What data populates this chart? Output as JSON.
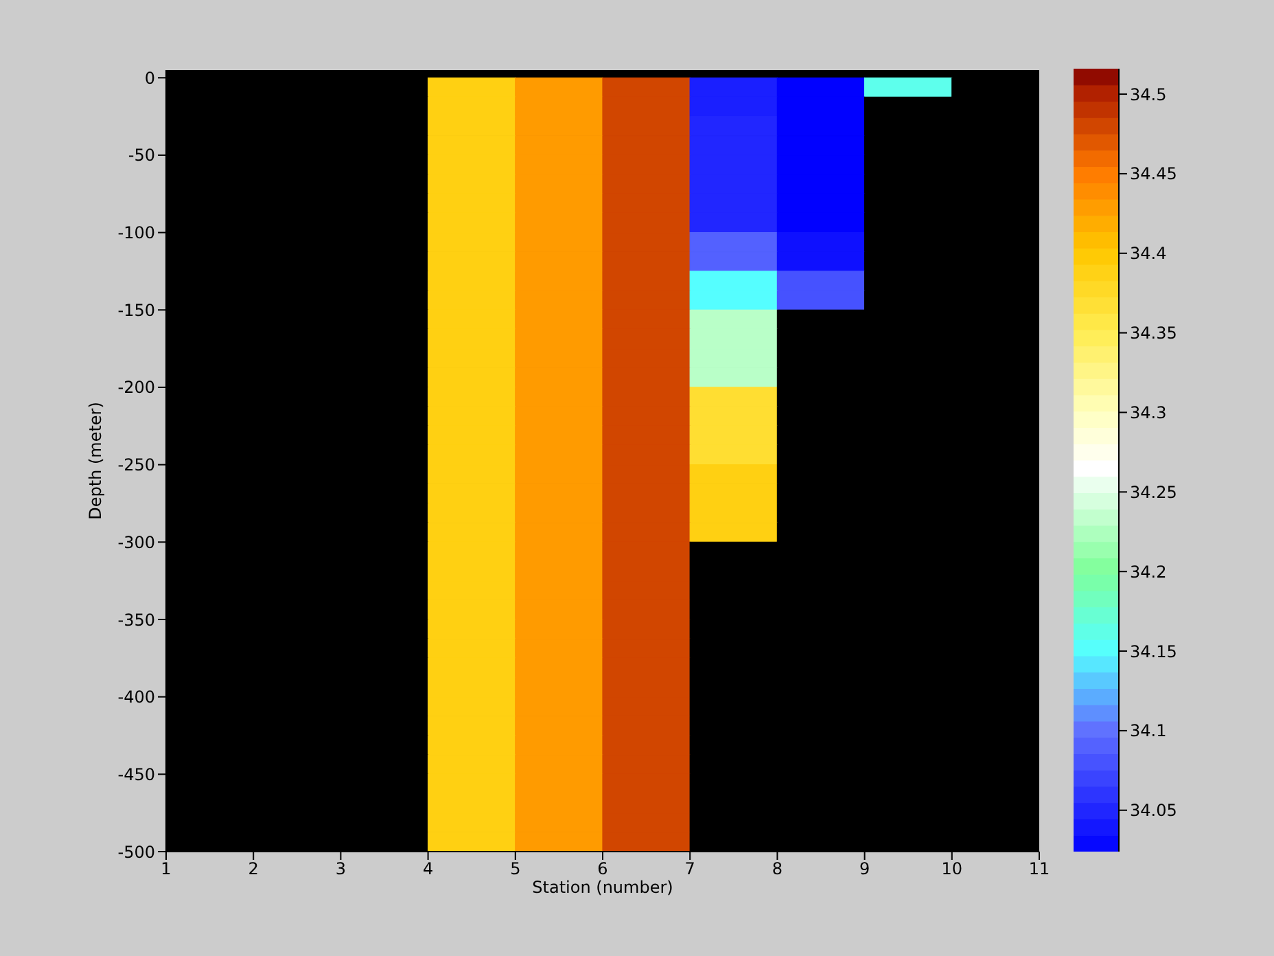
{
  "chart_data": {
    "type": "heatmap",
    "xlabel": "Station (number)",
    "ylabel": "Depth (meter)",
    "x": [
      1.5,
      2.5,
      3.5,
      4.5,
      5.5,
      6.5,
      7.5,
      8.5,
      9.5,
      10.5
    ],
    "y": [
      -6.25,
      -18.75,
      -31.25,
      -43.75,
      -56.25,
      -68.75,
      -81.25,
      -93.75,
      -106.25,
      -118.75,
      -131.25,
      -143.75,
      -156.25,
      -168.75,
      -181.25,
      -193.75,
      -206.25,
      -218.75,
      -231.25,
      -243.75,
      -256.25,
      -268.75,
      -281.25,
      -293.75,
      -306.25,
      -318.75,
      -331.25,
      -343.75,
      -356.25,
      -368.75,
      -381.25,
      -393.75,
      -406.25,
      -418.75,
      -431.25,
      -443.75,
      -456.25,
      -468.75,
      -481.25,
      -493.75
    ],
    "cells": [
      [
        null,
        null,
        null,
        34.39,
        34.43,
        34.48,
        34.045,
        34.025,
        34.16,
        null
      ],
      [
        null,
        null,
        null,
        34.39,
        34.43,
        34.48,
        34.045,
        34.025,
        null,
        null
      ],
      [
        null,
        null,
        null,
        34.39,
        34.43,
        34.48,
        34.05,
        34.025,
        null,
        null
      ],
      [
        null,
        null,
        null,
        34.39,
        34.43,
        34.48,
        34.05,
        34.025,
        null,
        null
      ],
      [
        null,
        null,
        null,
        34.39,
        34.43,
        34.48,
        34.05,
        34.025,
        null,
        null
      ],
      [
        null,
        null,
        null,
        34.39,
        34.43,
        34.48,
        34.05,
        34.025,
        null,
        null
      ],
      [
        null,
        null,
        null,
        34.39,
        34.43,
        34.48,
        34.05,
        34.025,
        null,
        null
      ],
      [
        null,
        null,
        null,
        34.39,
        34.43,
        34.48,
        34.05,
        34.025,
        null,
        null
      ],
      [
        null,
        null,
        null,
        34.39,
        34.43,
        34.48,
        34.09,
        34.035,
        null,
        null
      ],
      [
        null,
        null,
        null,
        34.39,
        34.43,
        34.48,
        34.09,
        34.035,
        null,
        null
      ],
      [
        null,
        null,
        null,
        34.39,
        34.43,
        34.48,
        34.15,
        34.08,
        null,
        null
      ],
      [
        null,
        null,
        null,
        34.39,
        34.43,
        34.48,
        34.15,
        34.08,
        null,
        null
      ],
      [
        null,
        null,
        null,
        34.39,
        34.43,
        34.48,
        34.23,
        null,
        null,
        null
      ],
      [
        null,
        null,
        null,
        34.39,
        34.43,
        34.48,
        34.23,
        null,
        null,
        null
      ],
      [
        null,
        null,
        null,
        34.39,
        34.43,
        34.48,
        34.23,
        null,
        null,
        null
      ],
      [
        null,
        null,
        null,
        34.39,
        34.43,
        34.48,
        34.23,
        null,
        null,
        null
      ],
      [
        null,
        null,
        null,
        34.39,
        34.43,
        34.48,
        34.37,
        null,
        null,
        null
      ],
      [
        null,
        null,
        null,
        34.39,
        34.43,
        34.48,
        34.37,
        null,
        null,
        null
      ],
      [
        null,
        null,
        null,
        34.39,
        34.43,
        34.48,
        34.37,
        null,
        null,
        null
      ],
      [
        null,
        null,
        null,
        34.39,
        34.43,
        34.48,
        34.37,
        null,
        null,
        null
      ],
      [
        null,
        null,
        null,
        34.39,
        34.43,
        34.48,
        34.39,
        null,
        null,
        null
      ],
      [
        null,
        null,
        null,
        34.39,
        34.43,
        34.48,
        34.39,
        null,
        null,
        null
      ],
      [
        null,
        null,
        null,
        34.39,
        34.43,
        34.48,
        34.39,
        null,
        null,
        null
      ],
      [
        null,
        null,
        null,
        34.39,
        34.43,
        34.48,
        34.39,
        null,
        null,
        null
      ],
      [
        null,
        null,
        null,
        34.39,
        34.43,
        34.48,
        null,
        null,
        null,
        null
      ],
      [
        null,
        null,
        null,
        34.39,
        34.43,
        34.48,
        null,
        null,
        null,
        null
      ],
      [
        null,
        null,
        null,
        34.39,
        34.43,
        34.48,
        null,
        null,
        null,
        null
      ],
      [
        null,
        null,
        null,
        34.39,
        34.43,
        34.48,
        null,
        null,
        null,
        null
      ],
      [
        null,
        null,
        null,
        34.39,
        34.43,
        34.48,
        null,
        null,
        null,
        null
      ],
      [
        null,
        null,
        null,
        34.39,
        34.43,
        34.48,
        null,
        null,
        null,
        null
      ],
      [
        null,
        null,
        null,
        34.39,
        34.43,
        34.48,
        null,
        null,
        null,
        null
      ],
      [
        null,
        null,
        null,
        34.39,
        34.43,
        34.48,
        null,
        null,
        null,
        null
      ],
      [
        null,
        null,
        null,
        34.39,
        34.43,
        34.48,
        null,
        null,
        null,
        null
      ],
      [
        null,
        null,
        null,
        34.39,
        34.43,
        34.48,
        null,
        null,
        null,
        null
      ],
      [
        null,
        null,
        null,
        34.39,
        34.43,
        34.48,
        null,
        null,
        null,
        null
      ],
      [
        null,
        null,
        null,
        34.39,
        34.43,
        34.48,
        null,
        null,
        null,
        null
      ],
      [
        null,
        null,
        null,
        34.39,
        34.43,
        34.48,
        null,
        null,
        null,
        null
      ],
      [
        null,
        null,
        null,
        34.39,
        34.43,
        34.48,
        null,
        null,
        null,
        null
      ],
      [
        null,
        null,
        null,
        34.39,
        34.43,
        34.48,
        null,
        null,
        null,
        null
      ],
      [
        null,
        null,
        null,
        34.39,
        34.43,
        34.48,
        null,
        null,
        null,
        null
      ]
    ],
    "xlim": [
      1,
      11
    ],
    "xticks": [
      1,
      2,
      3,
      4,
      5,
      6,
      7,
      8,
      9,
      10,
      11
    ],
    "ylim": [
      -500,
      5
    ],
    "yticks": [
      -500,
      -450,
      -400,
      -350,
      -300,
      -250,
      -200,
      -150,
      -100,
      -50,
      0
    ],
    "clim": [
      34.024,
      34.516
    ],
    "cticks": [
      34.05,
      34.1,
      34.15,
      34.2,
      34.25,
      34.3,
      34.35,
      34.4,
      34.45,
      34.5
    ]
  }
}
